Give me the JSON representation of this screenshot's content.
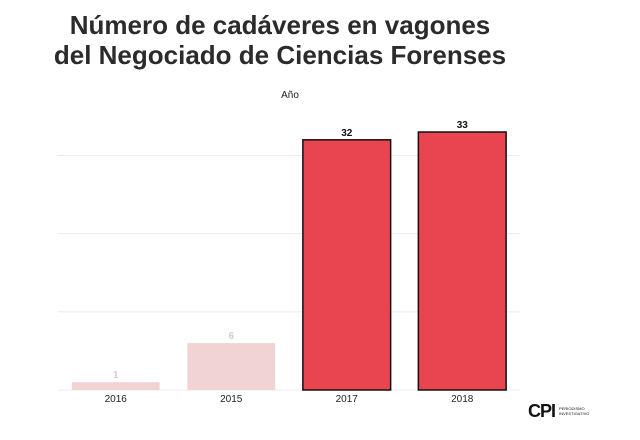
{
  "chart_data": {
    "type": "bar",
    "title_line1": "Número de cadáveres en vagones",
    "title_line2": "del Negociado de Ciencias Forenses",
    "axis_title": "Año",
    "categories": [
      "2016",
      "2015",
      "2017",
      "2018"
    ],
    "values": [
      1,
      6,
      32,
      33
    ],
    "highlighted": [
      false,
      false,
      true,
      true
    ],
    "ylim": [
      0,
      33
    ],
    "grid": true,
    "xlabel": "",
    "ylabel": "",
    "colors": {
      "muted_fill": "#f2d3d3",
      "muted_label": "#cfcfcf",
      "highlight_fill": "#e84550",
      "highlight_stroke": "#111111",
      "highlight_label": "#111111",
      "grid": "#ececec"
    }
  },
  "logo": {
    "mark": "CPI",
    "text": "Periodismo Investigativo"
  }
}
